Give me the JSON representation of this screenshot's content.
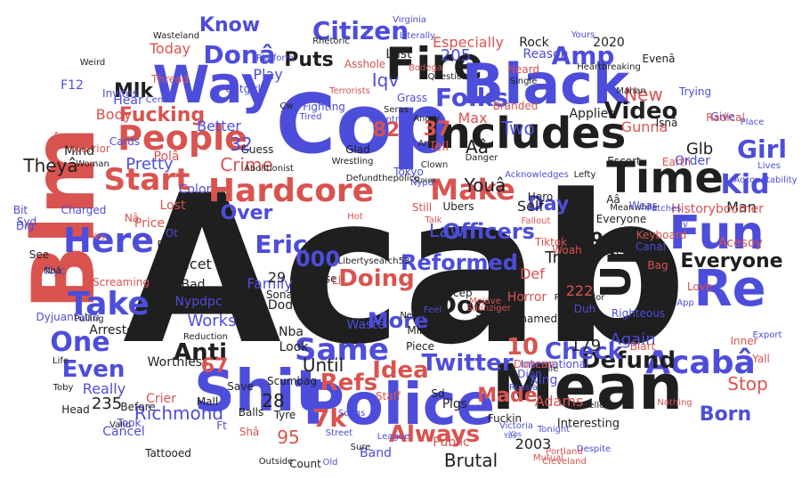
{
  "cloud": {
    "palette": {
      "red": "#d9534f",
      "blue": "#4d4ddb",
      "black": "#1f1f1f"
    },
    "words": [
      {
        "text": "Acab",
        "color": "black"
      },
      {
        "text": "Cop",
        "color": "blue"
      },
      {
        "text": "Blm",
        "color": "red"
      },
      {
        "text": "Police",
        "color": "blue"
      },
      {
        "text": "Shit",
        "color": "blue"
      },
      {
        "text": "Mean",
        "color": "black"
      },
      {
        "text": "Way",
        "color": "blue"
      },
      {
        "text": "People",
        "color": "red"
      },
      {
        "text": "Fire",
        "color": "black"
      },
      {
        "text": "Black",
        "color": "blue"
      },
      {
        "text": "Includes",
        "color": "black"
      },
      {
        "text": "Time",
        "color": "black"
      },
      {
        "text": "Fun",
        "color": "blue"
      },
      {
        "text": "Re",
        "color": "blue"
      },
      {
        "text": "Here",
        "color": "blue"
      },
      {
        "text": "Take",
        "color": "blue"
      },
      {
        "text": "Hardcore",
        "color": "red"
      },
      {
        "text": "Make",
        "color": "red"
      },
      {
        "text": "Start",
        "color": "red"
      },
      {
        "text": "Up",
        "color": "black"
      },
      {
        "text": "Same",
        "color": "blue"
      },
      {
        "text": "Acabâ",
        "color": "blue"
      },
      {
        "text": "Twitter",
        "color": "blue"
      },
      {
        "text": "Always",
        "color": "red"
      },
      {
        "text": "Doing",
        "color": "red"
      },
      {
        "text": "One",
        "color": "blue"
      },
      {
        "text": "Even",
        "color": "blue"
      },
      {
        "text": "Anti",
        "color": "black"
      },
      {
        "text": "Refs",
        "color": "red"
      },
      {
        "text": "Amp",
        "color": "blue"
      },
      {
        "text": "Folks",
        "color": "blue"
      },
      {
        "text": "Donâ",
        "color": "blue"
      },
      {
        "text": "Citizen",
        "color": "blue"
      },
      {
        "text": "Dog",
        "color": "black"
      },
      {
        "text": "Idea",
        "color": "red"
      },
      {
        "text": "Eric",
        "color": "blue"
      },
      {
        "text": "7k",
        "color": "red"
      },
      {
        "text": "Video",
        "color": "black"
      },
      {
        "text": "Kid",
        "color": "blue"
      },
      {
        "text": "Defund",
        "color": "black"
      },
      {
        "text": "Mlk",
        "color": "black"
      },
      {
        "text": "Fucking",
        "color": "red"
      },
      {
        "text": "Know",
        "color": "blue"
      },
      {
        "text": "Puts",
        "color": "black"
      },
      {
        "text": "Girl",
        "color": "blue"
      },
      {
        "text": "Everyone",
        "color": "black"
      },
      {
        "text": "Check",
        "color": "blue"
      },
      {
        "text": "Made",
        "color": "red"
      },
      {
        "text": "Officers",
        "color": "blue"
      },
      {
        "text": "More",
        "color": "blue"
      },
      {
        "text": "Reformed",
        "color": "blue"
      },
      {
        "text": "000",
        "color": "blue"
      },
      {
        "text": "Law",
        "color": "blue"
      },
      {
        "text": "Day",
        "color": "blue"
      },
      {
        "text": "Youâ",
        "color": "black"
      },
      {
        "text": "Theyâ",
        "color": "black"
      },
      {
        "text": "Crime",
        "color": "red"
      },
      {
        "text": "Pretty",
        "color": "blue"
      },
      {
        "text": "Over",
        "color": "blue"
      },
      {
        "text": "Richmond",
        "color": "blue"
      },
      {
        "text": "Until",
        "color": "black"
      },
      {
        "text": "Truck",
        "color": "black"
      },
      {
        "text": "Man",
        "color": "black"
      },
      {
        "text": "Born",
        "color": "blue"
      },
      {
        "text": "Adams",
        "color": "red"
      },
      {
        "text": "Two",
        "color": "blue"
      },
      {
        "text": "Brutal",
        "color": "black"
      },
      {
        "text": "Works",
        "color": "blue"
      },
      {
        "text": "Again",
        "color": "blue"
      },
      {
        "text": "Stop",
        "color": "red"
      },
      {
        "text": "Gunna",
        "color": "red"
      },
      {
        "text": "Aâ",
        "color": "black"
      },
      {
        "text": "New",
        "color": "red"
      },
      {
        "text": "Applies",
        "color": "black"
      },
      {
        "text": "Glb",
        "color": "black"
      },
      {
        "text": "Historyboomer",
        "color": "red"
      },
      {
        "text": "Family",
        "color": "blue"
      },
      {
        "text": "Icet",
        "color": "black"
      },
      {
        "text": "Bad",
        "color": "black"
      },
      {
        "text": "Mind",
        "color": "black"
      },
      {
        "text": "Nypdpc",
        "color": "blue"
      },
      {
        "text": "Dod",
        "color": "black"
      },
      {
        "text": "Look",
        "color": "black"
      },
      {
        "text": "Nba",
        "color": "black"
      },
      {
        "text": "Waste",
        "color": "blue"
      },
      {
        "text": "Really",
        "color": "blue"
      },
      {
        "text": "Worthless",
        "color": "black"
      },
      {
        "text": "Interesting",
        "color": "black"
      },
      {
        "text": "Ashamed",
        "color": "black"
      },
      {
        "text": "Band",
        "color": "blue"
      },
      {
        "text": "Crier",
        "color": "red"
      },
      {
        "text": "Cancel",
        "color": "blue"
      },
      {
        "text": "Count",
        "color": "black"
      },
      {
        "text": "Public",
        "color": "red"
      },
      {
        "text": "Today",
        "color": "red"
      },
      {
        "text": "Play",
        "color": "blue"
      },
      {
        "text": "Better",
        "color": "blue"
      },
      {
        "text": "Color",
        "color": "blue"
      },
      {
        "text": "Body",
        "color": "red"
      },
      {
        "text": "Hear",
        "color": "blue"
      },
      {
        "text": "Lost",
        "color": "red"
      },
      {
        "text": "Price",
        "color": "red"
      },
      {
        "text": "Self",
        "color": "black"
      },
      {
        "text": "Hero",
        "color": "black"
      },
      {
        "text": "Escort",
        "color": "black"
      },
      {
        "text": "Max",
        "color": "red"
      },
      {
        "text": "Ubers",
        "color": "black"
      },
      {
        "text": "Everyone",
        "color": "black"
      },
      {
        "text": "Larry",
        "color": "black"
      },
      {
        "text": "Horror",
        "color": "red"
      },
      {
        "text": "Def",
        "color": "red"
      },
      {
        "text": "Woah",
        "color": "red"
      },
      {
        "text": "Dion",
        "color": "blue"
      },
      {
        "text": "King",
        "color": "blue"
      },
      {
        "text": "Pigs",
        "color": "black"
      },
      {
        "text": "Fuckin",
        "color": "black"
      },
      {
        "text": "Tyre",
        "color": "black"
      },
      {
        "text": "Sonas",
        "color": "black"
      },
      {
        "text": "Last",
        "color": "black"
      },
      {
        "text": "Especially",
        "color": "red"
      },
      {
        "text": "Iqv",
        "color": "blue"
      },
      {
        "text": "Reason",
        "color": "blue"
      },
      {
        "text": "Rock",
        "color": "black"
      },
      {
        "text": "Mahan",
        "color": "black"
      },
      {
        "text": "Tiktok",
        "color": "red"
      },
      {
        "text": "Acesoy",
        "color": "red"
      },
      {
        "text": "Bicep",
        "color": "black"
      },
      {
        "text": "Min",
        "color": "black"
      },
      {
        "text": "Piece",
        "color": "black"
      },
      {
        "text": "Mojave",
        "color": "red"
      },
      {
        "text": "Sdonziger",
        "color": "red"
      },
      {
        "text": "Needs",
        "color": "black"
      },
      {
        "text": "Fallout",
        "color": "red"
      },
      {
        "text": "Dyjuantatro",
        "color": "blue"
      },
      {
        "text": "Scumbag",
        "color": "black"
      },
      {
        "text": "Everyone",
        "color": "black"
      },
      {
        "text": "Yes",
        "color": "red"
      },
      {
        "text": "Balls",
        "color": "black"
      },
      {
        "text": "Tattooed",
        "color": "black"
      },
      {
        "text": "Before",
        "color": "black"
      },
      {
        "text": "Mall",
        "color": "black"
      },
      {
        "text": "Save",
        "color": "black"
      },
      {
        "text": "Arrested",
        "color": "black"
      },
      {
        "text": "Screaming",
        "color": "red"
      },
      {
        "text": "Charged",
        "color": "blue"
      },
      {
        "text": "Warrior",
        "color": "red"
      },
      {
        "text": "Guess",
        "color": "black"
      },
      {
        "text": "Glad",
        "color": "black"
      },
      {
        "text": "Grass",
        "color": "blue"
      },
      {
        "text": "Abolitionist",
        "color": "black"
      },
      {
        "text": "Catgirl",
        "color": "blue"
      },
      {
        "text": "Fighting",
        "color": "blue"
      },
      {
        "text": "Tired",
        "color": "blue"
      },
      {
        "text": "Rhetoric",
        "color": "black"
      },
      {
        "text": "Platform",
        "color": "blue"
      },
      {
        "text": "Thread",
        "color": "red"
      },
      {
        "text": "Invites",
        "color": "blue"
      },
      {
        "text": "Asshole",
        "color": "red"
      },
      {
        "text": "Bodega",
        "color": "red"
      },
      {
        "text": "Terrorists",
        "color": "red"
      },
      {
        "text": "Question",
        "color": "black"
      },
      {
        "text": "Heartbreaking",
        "color": "black"
      },
      {
        "text": "Trying",
        "color": "blue"
      },
      {
        "text": "Give",
        "color": "blue"
      },
      {
        "text": "Radical",
        "color": "red"
      },
      {
        "text": "Earth",
        "color": "red"
      },
      {
        "text": "Place",
        "color": "blue"
      },
      {
        "text": "Order",
        "color": "blue"
      },
      {
        "text": "Lives",
        "color": "blue"
      },
      {
        "text": "Accountability",
        "color": "blue"
      },
      {
        "text": "Keyboard",
        "color": "red"
      },
      {
        "text": "Canal",
        "color": "blue"
      },
      {
        "text": "Bag",
        "color": "red"
      },
      {
        "text": "Love",
        "color": "red"
      },
      {
        "text": "App",
        "color": "blue"
      },
      {
        "text": "Righteous",
        "color": "blue"
      },
      {
        "text": "Perpetrator",
        "color": "black"
      },
      {
        "text": "Blart",
        "color": "red"
      },
      {
        "text": "Inner",
        "color": "red"
      },
      {
        "text": "Export",
        "color": "blue"
      },
      {
        "text": "Yall",
        "color": "red"
      },
      {
        "text": "Nothing",
        "color": "red"
      },
      {
        "text": "Despite",
        "color": "blue"
      },
      {
        "text": "Tonight",
        "color": "blue"
      },
      {
        "text": "International",
        "color": "blue"
      },
      {
        "text": "File",
        "color": "black"
      },
      {
        "text": "Yellow",
        "color": "black"
      },
      {
        "text": "Staff",
        "color": "red"
      },
      {
        "text": "Songs",
        "color": "blue"
      },
      {
        "text": "Street",
        "color": "blue"
      },
      {
        "text": "League",
        "color": "blue"
      },
      {
        "text": "Valid",
        "color": "black"
      },
      {
        "text": "Took",
        "color": "blue"
      },
      {
        "text": "Head",
        "color": "black"
      },
      {
        "text": "Toby",
        "color": "black"
      },
      {
        "text": "Life",
        "color": "black"
      },
      {
        "text": "Week",
        "color": "red"
      },
      {
        "text": "Nyc",
        "color": "blue"
      },
      {
        "text": "See",
        "color": "black"
      },
      {
        "text": "Syd",
        "color": "blue"
      },
      {
        "text": "Bio",
        "color": "black"
      },
      {
        "text": "Cause",
        "color": "black"
      },
      {
        "text": "Feel",
        "color": "blue"
      },
      {
        "text": "Reduction",
        "color": "black"
      },
      {
        "text": "Pulling",
        "color": "black"
      },
      {
        "text": "Outside",
        "color": "black"
      },
      {
        "text": "Old",
        "color": "blue"
      },
      {
        "text": "Sure",
        "color": "black"
      },
      {
        "text": "Cards",
        "color": "blue"
      },
      {
        "text": "Literally",
        "color": "blue"
      },
      {
        "text": "Virginia",
        "color": "blue"
      },
      {
        "text": "Country",
        "color": "blue"
      },
      {
        "text": "Angry",
        "color": "black"
      },
      {
        "text": "Danger",
        "color": "black"
      },
      {
        "text": "Branded",
        "color": "red"
      },
      {
        "text": "Tell",
        "color": "red"
      },
      {
        "text": "Tokyo",
        "color": "blue"
      },
      {
        "text": "Wrestling",
        "color": "black"
      },
      {
        "text": "Nypd",
        "color": "blue"
      },
      {
        "text": "Still",
        "color": "red"
      },
      {
        "text": "Talk",
        "color": "red"
      },
      {
        "text": "Stores",
        "color": "black"
      },
      {
        "text": "Defundthepolice",
        "color": "black"
      },
      {
        "text": "Acknowledges",
        "color": "blue"
      },
      {
        "text": "Lefty",
        "color": "black"
      },
      {
        "text": "Meanwhile",
        "color": "black"
      },
      {
        "text": "Patches",
        "color": "blue"
      },
      {
        "text": "Clown",
        "color": "black"
      },
      {
        "text": "Libertysearch53",
        "color": "black"
      },
      {
        "text": "Weird",
        "color": "black"
      },
      {
        "text": "Yours",
        "color": "blue"
      },
      {
        "text": "Heard",
        "color": "red"
      },
      {
        "text": "Single",
        "color": "black"
      },
      {
        "text": "Wasteland",
        "color": "black"
      },
      {
        "text": "F12",
        "color": "blue"
      },
      {
        "text": "Asap",
        "color": "red"
      },
      {
        "text": "Woman",
        "color": "black"
      },
      {
        "text": "Cents",
        "color": "blue"
      },
      {
        "text": "Cw",
        "color": "black"
      },
      {
        "text": "Seras",
        "color": "black"
      },
      {
        "text": "Duncan",
        "color": "red"
      },
      {
        "text": "Russia",
        "color": "blue"
      },
      {
        "text": "Portland",
        "color": "red"
      },
      {
        "text": "Cleveland",
        "color": "red"
      },
      {
        "text": "Victoria",
        "color": "blue"
      },
      {
        "text": "Mutual",
        "color": "red"
      },
      {
        "text": "Wear",
        "color": "blue"
      },
      {
        "text": "Hot",
        "color": "red"
      },
      {
        "text": "Ybs",
        "color": "blue"
      },
      {
        "text": "205",
        "color": "blue"
      },
      {
        "text": "82",
        "color": "red"
      },
      {
        "text": "37",
        "color": "red"
      },
      {
        "text": "32",
        "color": "blue"
      },
      {
        "text": "19",
        "color": "black"
      },
      {
        "text": "10",
        "color": "red"
      },
      {
        "text": "29",
        "color": "black"
      },
      {
        "text": "28",
        "color": "black"
      },
      {
        "text": "179",
        "color": "black"
      },
      {
        "text": "222",
        "color": "red"
      },
      {
        "text": "95",
        "color": "red"
      },
      {
        "text": "67",
        "color": "red"
      },
      {
        "text": "235",
        "color": "black"
      },
      {
        "text": "2003",
        "color": "black"
      },
      {
        "text": "2020",
        "color": "black"
      },
      {
        "text": "Duh",
        "color": "blue"
      },
      {
        "text": "Sd",
        "color": "black"
      },
      {
        "text": "Ll",
        "color": "red"
      },
      {
        "text": "Nâ",
        "color": "red"
      },
      {
        "text": "Ot",
        "color": "blue"
      },
      {
        "text": "Aâ",
        "color": "black"
      },
      {
        "text": "Isnâ",
        "color": "black"
      },
      {
        "text": "Evenâ",
        "color": "black"
      },
      {
        "text": "Arâ",
        "color": "black"
      },
      {
        "text": "Polâ",
        "color": "red"
      },
      {
        "text": "Shâ",
        "color": "red"
      },
      {
        "text": "Ft",
        "color": "blue"
      },
      {
        "text": "Noâ",
        "color": "black"
      },
      {
        "text": "Bit",
        "color": "blue"
      },
      {
        "text": "Dig",
        "color": "blue"
      },
      {
        "text": "Riv",
        "color": "blue"
      },
      {
        "text": "Ybs",
        "color": "blue"
      }
    ]
  }
}
